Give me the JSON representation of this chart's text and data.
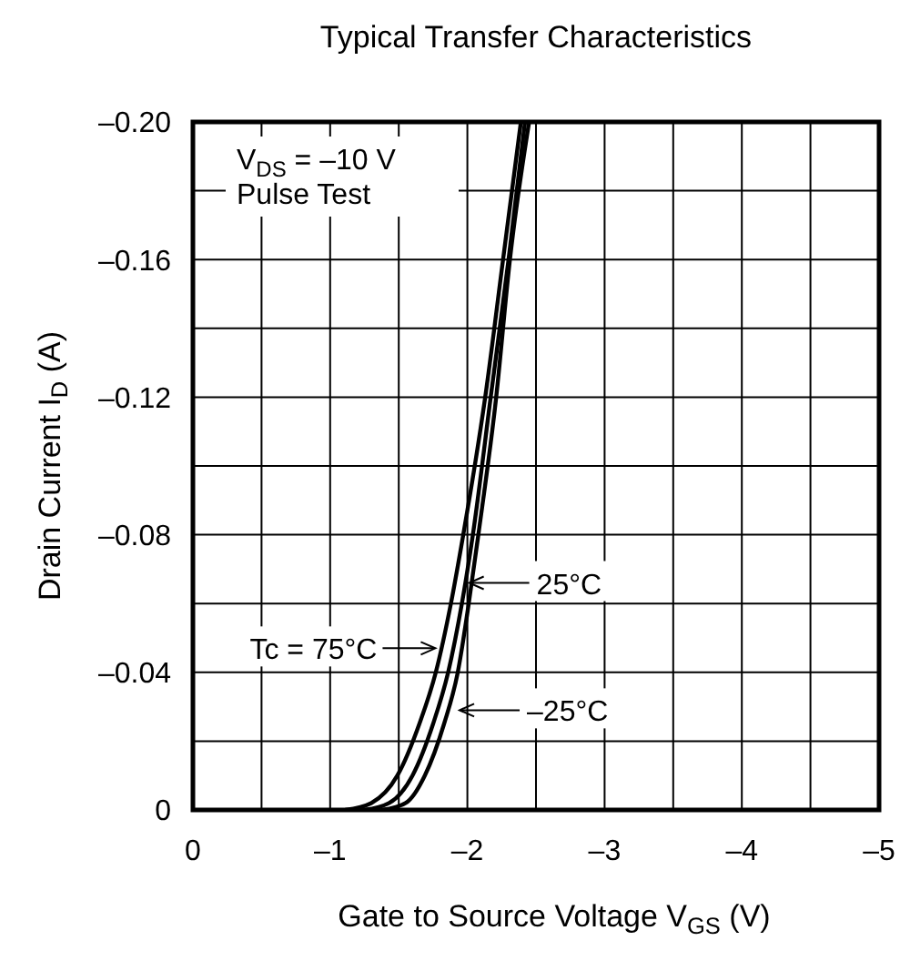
{
  "chart_data": {
    "type": "line",
    "title": "Typical Transfer Characteristics",
    "xlabel": "Gate to Source Voltage   V$_{GS}$   (V)",
    "ylabel": "Drain Current   I$_{D}$   (A)",
    "xlim": [
      0,
      -5
    ],
    "ylim": [
      0,
      -0.2
    ],
    "xticks": [
      {
        "value": 0,
        "label": "0"
      },
      {
        "value": -0.5,
        "label": null
      },
      {
        "value": -1,
        "label": "–1"
      },
      {
        "value": -1.5,
        "label": null
      },
      {
        "value": -2,
        "label": "–2"
      },
      {
        "value": -2.5,
        "label": null
      },
      {
        "value": -3,
        "label": "–3"
      },
      {
        "value": -3.5,
        "label": null
      },
      {
        "value": -4,
        "label": "–4"
      },
      {
        "value": -4.5,
        "label": null
      },
      {
        "value": -5,
        "label": "–5"
      }
    ],
    "yticks": [
      {
        "value": 0,
        "label": "0"
      },
      {
        "value": -0.02,
        "label": null
      },
      {
        "value": -0.04,
        "label": "–0.04"
      },
      {
        "value": -0.06,
        "label": null
      },
      {
        "value": -0.08,
        "label": "–0.08"
      },
      {
        "value": -0.1,
        "label": null
      },
      {
        "value": -0.12,
        "label": "–0.12"
      },
      {
        "value": -0.14,
        "label": null
      },
      {
        "value": -0.16,
        "label": "–0.16"
      },
      {
        "value": -0.18,
        "label": null
      },
      {
        "value": -0.2,
        "label": "–0.20"
      }
    ],
    "grid": true,
    "series": [
      {
        "color": "#000000",
        "x": [
          -1.11,
          -1.3,
          -1.49,
          -1.65,
          -1.77,
          -1.88,
          -1.97,
          -2.13,
          -2.26,
          -2.39
        ],
        "values": [
          0,
          -0.002,
          -0.01,
          -0.025,
          -0.04,
          -0.06,
          -0.08,
          -0.12,
          -0.16,
          -0.2
        ]
      },
      {
        "color": "#000000",
        "x": [
          -1.25,
          -1.43,
          -1.6,
          -1.75,
          -1.86,
          -1.96,
          -2.04,
          -2.17,
          -2.3,
          -2.42
        ],
        "values": [
          0,
          -0.002,
          -0.01,
          -0.025,
          -0.04,
          -0.06,
          -0.08,
          -0.12,
          -0.16,
          -0.2
        ]
      },
      {
        "color": "#000000",
        "x": [
          -1.38,
          -1.55,
          -1.69,
          -1.83,
          -1.93,
          -2.01,
          -2.08,
          -2.21,
          -2.31,
          -2.45
        ],
        "values": [
          0,
          -0.002,
          -0.01,
          -0.025,
          -0.04,
          -0.06,
          -0.08,
          -0.12,
          -0.16,
          -0.2
        ]
      }
    ],
    "annotations": [
      "V$_{DS}$ = –10 V",
      "Pulse Test",
      {
        "text": "Tc = 75°C",
        "x": -1.78,
        "y": -0.047
      },
      {
        "text": "25°C",
        "x": -2.0,
        "y": -0.066
      },
      {
        "text": "–25°C",
        "x": -1.93,
        "y": -0.029
      }
    ]
  }
}
